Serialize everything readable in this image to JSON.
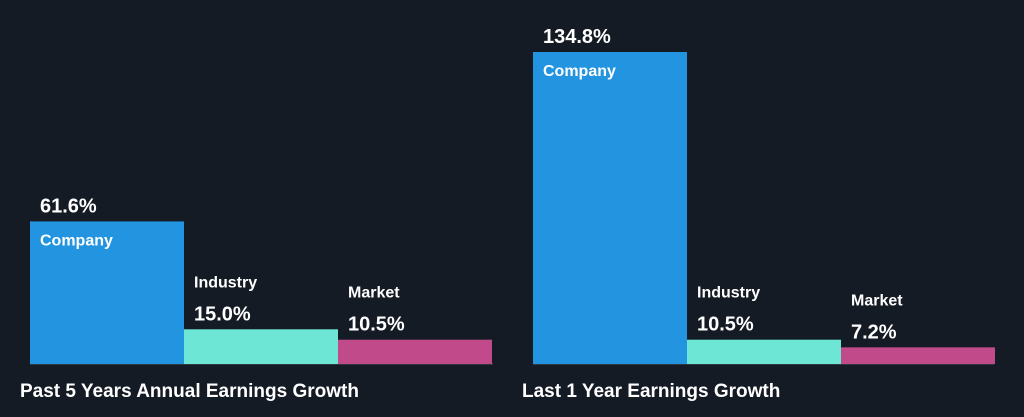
{
  "colors": {
    "background": "#151b24",
    "company": "#2394e0",
    "industry": "#6ee6d6",
    "market": "#c04a8a",
    "axis": "#4d5560"
  },
  "chart_data": [
    {
      "type": "bar",
      "title": "Past 5 Years Annual Earnings Growth",
      "categories": [
        "Company",
        "Industry",
        "Market"
      ],
      "values": [
        61.6,
        15.0,
        10.5
      ],
      "value_labels": [
        "61.6%",
        "15.0%",
        "10.5%"
      ],
      "ylim": [
        0,
        134.8
      ],
      "grid": false,
      "legend": "none"
    },
    {
      "type": "bar",
      "title": "Last 1 Year Earnings Growth",
      "categories": [
        "Company",
        "Industry",
        "Market"
      ],
      "values": [
        134.8,
        10.5,
        7.2
      ],
      "value_labels": [
        "134.8%",
        "10.5%",
        "7.2%"
      ],
      "ylim": [
        0,
        134.8
      ],
      "grid": false,
      "legend": "none"
    }
  ]
}
